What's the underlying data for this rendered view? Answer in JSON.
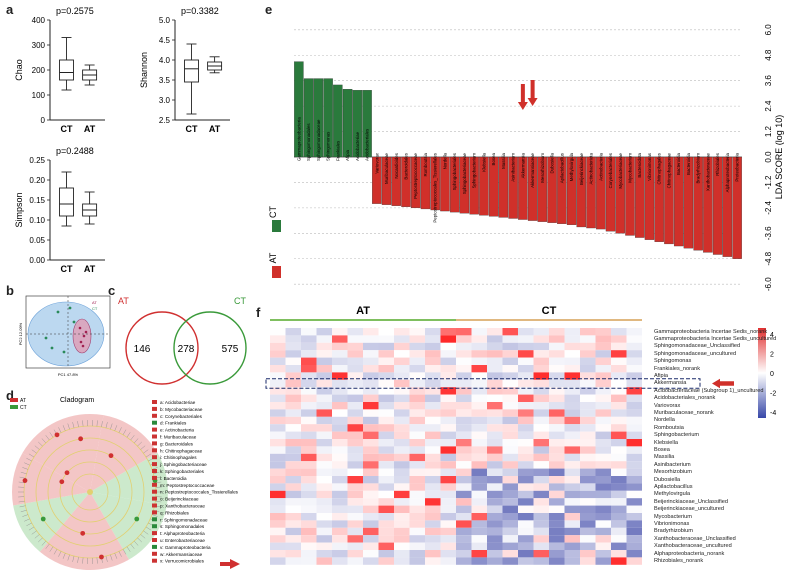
{
  "panels": {
    "a": {
      "label": "a",
      "boxplots": [
        {
          "ylabel": "Chao",
          "pvalue": "p=0.2575",
          "yticks": [
            "400",
            "300",
            "200",
            "100",
            "0"
          ],
          "groups": [
            "CT",
            "AT"
          ],
          "stats": [
            {
              "min": 120,
              "q1": 160,
              "med": 190,
              "q3": 240,
              "max": 330
            },
            {
              "min": 140,
              "q1": 160,
              "med": 180,
              "q3": 200,
              "max": 220
            }
          ],
          "ylim": [
            0,
            400
          ]
        },
        {
          "ylabel": "Shannon",
          "pvalue": "p=0.3382",
          "yticks": [
            "5.0",
            "4.5",
            "4.0",
            "3.5",
            "3.0",
            "2.5"
          ],
          "groups": [
            "CT",
            "AT"
          ],
          "stats": [
            {
              "min": 2.65,
              "q1": 3.45,
              "med": 3.78,
              "q3": 4.0,
              "max": 4.4
            },
            {
              "min": 3.68,
              "q1": 3.75,
              "med": 3.85,
              "q3": 3.95,
              "max": 4.08
            }
          ],
          "ylim": [
            2.5,
            5.0
          ]
        },
        {
          "ylabel": "Simpson",
          "pvalue": "p=0.2488",
          "yticks": [
            "0.25",
            "0.20",
            "0.15",
            "0.10",
            "0.05",
            "0.00"
          ],
          "groups": [
            "CT",
            "AT"
          ],
          "stats": [
            {
              "min": 0.085,
              "q1": 0.11,
              "med": 0.14,
              "q3": 0.18,
              "max": 0.22
            },
            {
              "min": 0.09,
              "q1": 0.11,
              "med": 0.125,
              "q3": 0.14,
              "max": 0.17
            }
          ],
          "ylim": [
            0,
            0.25
          ]
        }
      ]
    },
    "b": {
      "label": "b",
      "xlabel": "PC1 47.8%",
      "ylabel": "PC2 12.09%",
      "legend": [
        "AT",
        "CT"
      ]
    },
    "c": {
      "label": "c",
      "left_name": "AT",
      "right_name": "CT",
      "left_only": "146",
      "shared": "278",
      "right_only": "575"
    },
    "d": {
      "label": "d",
      "title": "Cladogram",
      "legend": [
        "AT",
        "CT"
      ],
      "taxa": [
        "a: Acidobacteriae",
        "b: Mycobacteriaceae",
        "c: Corynebacteriales",
        "d: Frankiales",
        "e: Actinobacteria",
        "f: Muribaculaceae",
        "g: Bacteroidales",
        "h: Chitinophagaceae",
        "i: Chitinophagales",
        "j: Sphingobacteriaceae",
        "k: Sphingobacteriales",
        "l: Bacteroidia",
        "m: Peptostreptococcaceae",
        "n: Peptostreptococcales_Tissierellales",
        "o: Beijerinckiaceae",
        "p: Xanthobacteraceae",
        "q: Rhizobiales",
        "r: Sphingomonadaceae",
        "s: Sphingomonadales",
        "t: Alphaproteobacteria",
        "u: Enterobacteriaceae",
        "v: Gammaproteobacteria",
        "w: Akkermansiaceae",
        "x: Verrucomicrobiales"
      ],
      "taxa_colors": [
        "#c33",
        "#c33",
        "#c33",
        "#2a8a3c",
        "#c33",
        "#c33",
        "#c33",
        "#c33",
        "#c33",
        "#c33",
        "#c33",
        "#c33",
        "#c33",
        "#c33",
        "#c33",
        "#c33",
        "#c33",
        "#2a8a3c",
        "#2a8a3c",
        "#c33",
        "#c33",
        "#2a8a3c",
        "#c33",
        "#c33"
      ]
    },
    "e": {
      "label": "e",
      "ylabel": "LDA SCORE (log 10)",
      "yticks": [
        "6.0",
        "4.8",
        "3.6",
        "2.4",
        "1.2",
        "0.0",
        "-1.2",
        "-2.4",
        "-3.6",
        "-4.8",
        "-6.0"
      ],
      "legend": [
        {
          "name": "CT",
          "color": "#2a7a3c"
        },
        {
          "name": "AT",
          "color": "#d0302a"
        }
      ],
      "ct_taxa": [
        {
          "name": "Gammaproteobacteria",
          "lda": 4.5
        },
        {
          "name": "Sphingomonadales",
          "lda": 3.7
        },
        {
          "name": "Sphingomonadaceae",
          "lda": 3.7
        },
        {
          "name": "Sphingomonas",
          "lda": 3.7
        },
        {
          "name": "Frankiales",
          "lda": 3.4
        },
        {
          "name": "Afipia",
          "lda": 3.2
        },
        {
          "name": "Acidobacteriae",
          "lda": 3.15
        },
        {
          "name": "Acidobacteriales",
          "lda": 3.15
        }
      ],
      "at_taxa": [
        {
          "name": "Variovorax",
          "lda": -2.2
        },
        {
          "name": "Muribaculaceae",
          "lda": -2.25
        },
        {
          "name": "Nocardioides",
          "lda": -2.3
        },
        {
          "name": "Bacteroidales",
          "lda": -2.35
        },
        {
          "name": "Peptostreptococcaceae",
          "lda": -2.4
        },
        {
          "name": "Romboutsia",
          "lda": -2.45
        },
        {
          "name": "Peptostreptococcales_Tissierellales",
          "lda": -2.5
        },
        {
          "name": "Nordella",
          "lda": -2.55
        },
        {
          "name": "Sphingobacteriales",
          "lda": -2.6
        },
        {
          "name": "Sphingobacteriaceae",
          "lda": -2.65
        },
        {
          "name": "Sphingobacterium",
          "lda": -2.7
        },
        {
          "name": "Klebsiella",
          "lda": -2.75
        },
        {
          "name": "Bosea",
          "lda": -2.8
        },
        {
          "name": "Massilia",
          "lda": -2.85
        },
        {
          "name": "Asinibacterium",
          "lda": -2.9
        },
        {
          "name": "Akkermansia",
          "lda": -2.95
        },
        {
          "name": "Akkermansiaceae",
          "lda": -3.0
        },
        {
          "name": "Mesorhizobium",
          "lda": -3.05
        },
        {
          "name": "Dubosiella",
          "lda": -3.1
        },
        {
          "name": "Apilactobacillus",
          "lda": -3.15
        },
        {
          "name": "Methylovirgula",
          "lda": -3.2
        },
        {
          "name": "Beijerinckiaceae",
          "lda": -3.3
        },
        {
          "name": "Actinobacteriota",
          "lda": -3.35
        },
        {
          "name": "Actinobacteria",
          "lda": -3.4
        },
        {
          "name": "Corynebacteriales",
          "lda": -3.5
        },
        {
          "name": "Mycobacteriaceae",
          "lda": -3.6
        },
        {
          "name": "Mycobacterium",
          "lda": -3.7
        },
        {
          "name": "Bacteroidota",
          "lda": -3.8
        },
        {
          "name": "Vibrionimonas",
          "lda": -3.9
        },
        {
          "name": "Chitinophagales",
          "lda": -4.0
        },
        {
          "name": "Chitinophagaceae",
          "lda": -4.1
        },
        {
          "name": "Bacteroidia",
          "lda": -4.2
        },
        {
          "name": "Bacteroidia",
          "lda": -4.3
        },
        {
          "name": "Bradyrhizobium",
          "lda": -4.4
        },
        {
          "name": "Xanthobacteraceae",
          "lda": -4.5
        },
        {
          "name": "Rhizobiales",
          "lda": -4.6
        },
        {
          "name": "Alphaproteobacteria",
          "lda": -4.7
        },
        {
          "name": "Proteobacteria",
          "lda": -4.8
        }
      ]
    },
    "f": {
      "label": "f",
      "group_left": "AT",
      "group_right": "CT",
      "legend_ticks": [
        "4",
        "2",
        "0",
        "-2",
        "-4"
      ],
      "rows": [
        "Gammaproteobacteria Incertae Sedis_norank",
        "Gammaproteobacteria Incertae Sedis_uncultured",
        "Sphingomonadaceae_Unclassified",
        "Sphingomonadaceae_uncultured",
        "Sphingomonas",
        "Frankiales_norank",
        "Afipia",
        "Akkermansia",
        "Acidobacteriaceae (Subgroup 1)_uncultured",
        "Acidobacteriales_norank",
        "Variovorax",
        "Muribaculaceae_norank",
        "Nordella",
        "Romboutsia",
        "Sphingobacterium",
        "Klebsiella",
        "Bosea",
        "Massilia",
        "Asinibacterium",
        "Mesorhizobium",
        "Dubosiella",
        "Apilactobacillus",
        "Methylovirgula",
        "Beijerinckiaceae_Unclassified",
        "Beijerinckiaceae_uncultured",
        "Mycobacterium",
        "Vibrionimonas",
        "Bradyrhizobium",
        "Xanthobacteraceae_Unclassified",
        "Xanthobacteraceae_uncultured",
        "Alphaproteobacteria_norank",
        "Rhizobiales_norank"
      ]
    }
  }
}
